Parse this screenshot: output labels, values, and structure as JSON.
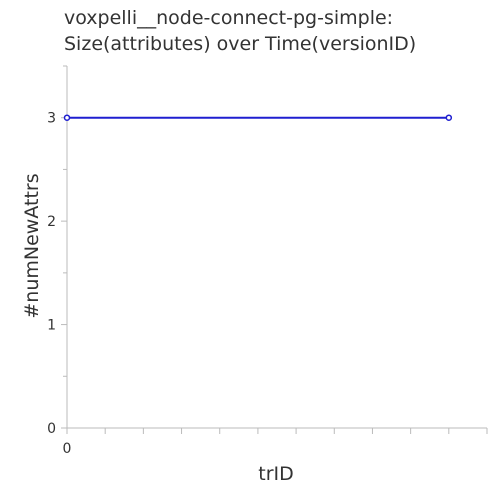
{
  "chart_data": {
    "type": "line",
    "title_lines": [
      "voxpelli__node-connect-pg-simple:",
      "Size(attributes) over Time(versionID)"
    ],
    "xlabel": "trID",
    "ylabel": "#numNewAttrs",
    "x_tick_labels": [
      "0"
    ],
    "y_ticks": [
      0,
      1,
      2,
      3
    ],
    "y_tick_labels": [
      "0",
      "1",
      "2",
      "3"
    ],
    "xlim": [
      0,
      1.1
    ],
    "ylim": [
      0,
      3.5
    ],
    "series": [
      {
        "x": [
          0,
          1
        ],
        "y": [
          3,
          3
        ]
      }
    ],
    "colors": {
      "line": "#1f1fd0",
      "axis": "#bbbbbb",
      "text": "#333333"
    },
    "grid": false
  }
}
